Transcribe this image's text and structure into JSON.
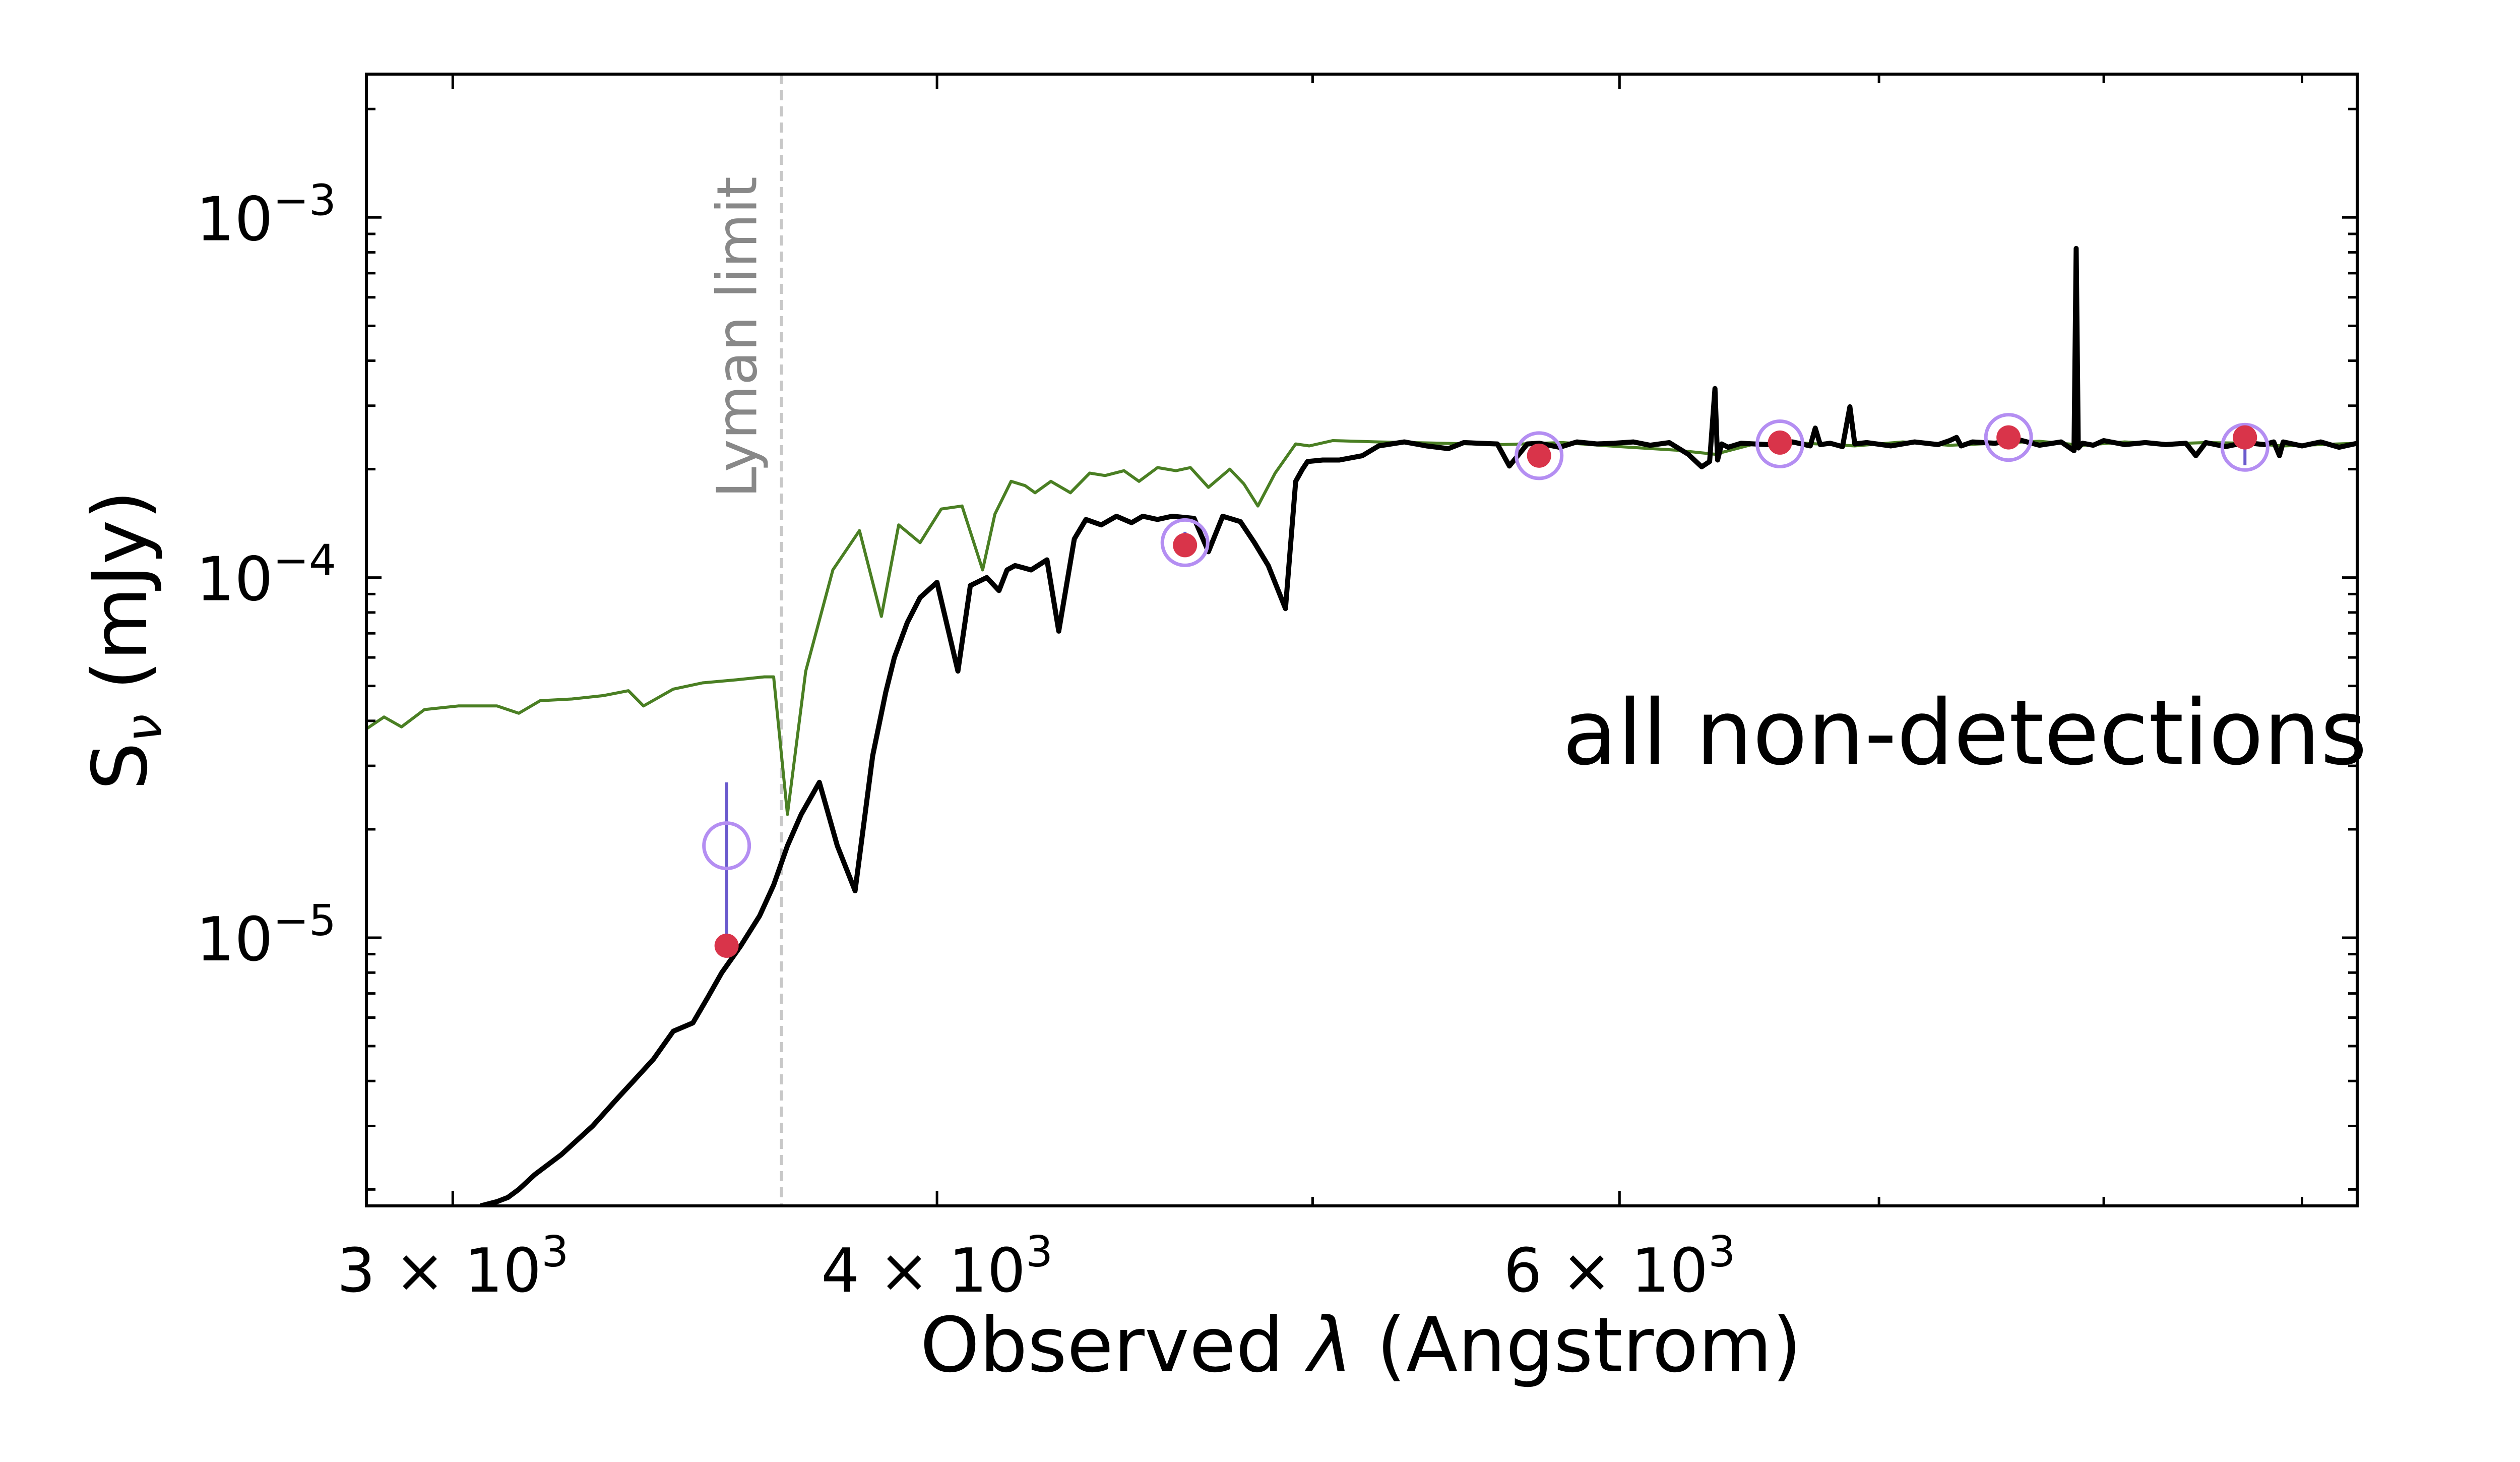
{
  "chart_data": {
    "type": "line",
    "xscale": "log",
    "yscale": "log",
    "xlim": [
      2850,
      9300
    ],
    "ylim": [
      1.8e-06,
      0.0025
    ],
    "xlabel_prefix": "Observed ",
    "xlabel_symbol": "λ",
    "xlabel_suffix": " (Angstrom)",
    "ylabel_main": "S",
    "ylabel_sub": "ν",
    "ylabel_suffix": " (mJy)",
    "x_tick_labels": [
      {
        "value": 3000,
        "mantissa": "3 × 10",
        "exp": "3"
      },
      {
        "value": 4000,
        "mantissa": "4 × 10",
        "exp": "3"
      },
      {
        "value": 6000,
        "mantissa": "6 × 10",
        "exp": "3"
      }
    ],
    "x_minor_ticks": [
      5000,
      7000,
      8000,
      9000
    ],
    "y_tick_labels": [
      {
        "value": 1e-05,
        "base": "10",
        "exp": "−5"
      },
      {
        "value": 0.0001,
        "base": "10",
        "exp": "−4"
      },
      {
        "value": 0.001,
        "base": "10",
        "exp": "−3"
      }
    ],
    "y_minor_ticks": [
      2e-06,
      3e-06,
      4e-06,
      5e-06,
      6e-06,
      7e-06,
      8e-06,
      9e-06,
      2e-05,
      3e-05,
      4e-05,
      5e-05,
      6e-05,
      7e-05,
      8e-05,
      9e-05,
      0.0002,
      0.0003,
      0.0004,
      0.0005,
      0.0006,
      0.0007,
      0.0008,
      0.0009,
      0.002
    ],
    "annotation": "all non-detections",
    "lyman_limit": {
      "x": 3647,
      "label": "Lyman limit",
      "color": "#c8c8c8",
      "label_color": "#888888"
    },
    "series": [
      {
        "name": "intrinsic model (green)",
        "color": "#4a7f23",
        "x": [
          2850,
          2880,
          2910,
          2950,
          3010,
          3080,
          3120,
          3160,
          3220,
          3280,
          3330,
          3360,
          3420,
          3480,
          3550,
          3610,
          3630,
          3660,
          3700,
          3760,
          3820,
          3870,
          3910,
          3960,
          4010,
          4060,
          4110,
          4140,
          4180,
          4215,
          4240,
          4280,
          4330,
          4380,
          4420,
          4470,
          4510,
          4560,
          4610,
          4650,
          4700,
          4760,
          4800,
          4840,
          4890,
          4950,
          4990,
          5060,
          5200,
          5400,
          5600,
          5800,
          6000,
          6200,
          6350,
          6500,
          6700,
          6900,
          7100,
          7300,
          7500,
          7700,
          7900,
          8100,
          8300,
          8500,
          8700,
          8900,
          9100,
          9300
        ],
        "y": [
          3.8e-05,
          4.1e-05,
          3.85e-05,
          4.3e-05,
          4.4e-05,
          4.4e-05,
          4.2e-05,
          4.55e-05,
          4.6e-05,
          4.7e-05,
          4.85e-05,
          4.4e-05,
          4.9e-05,
          5.1e-05,
          5.2e-05,
          5.3e-05,
          5.3e-05,
          2.2e-05,
          5.5e-05,
          0.000105,
          0.000135,
          7.8e-05,
          0.00014,
          0.000125,
          0.000155,
          0.000158,
          0.000105,
          0.00015,
          0.000185,
          0.00018,
          0.000172,
          0.000185,
          0.000172,
          0.000195,
          0.000192,
          0.000198,
          0.000185,
          0.000202,
          0.000198,
          0.000202,
          0.000178,
          0.0002,
          0.000182,
          0.000158,
          0.000195,
          0.000235,
          0.000232,
          0.00024,
          0.000238,
          0.000236,
          0.000234,
          0.000237,
          0.000231,
          0.000226,
          0.00022,
          0.000235,
          0.000236,
          0.000232,
          0.000238,
          0.000233,
          0.000236,
          0.000239,
          0.000233,
          0.000238,
          0.000235,
          0.000237,
          0.000236,
          0.000232,
          0.000234,
          0.000236
        ]
      },
      {
        "name": "attenuated model (black)",
        "color": "#000000",
        "x": [
          3050,
          3080,
          3100,
          3120,
          3150,
          3200,
          3260,
          3310,
          3340,
          3380,
          3420,
          3460,
          3490,
          3520,
          3560,
          3600,
          3630,
          3660,
          3690,
          3730,
          3770,
          3810,
          3850,
          3880,
          3900,
          3930,
          3960,
          4000,
          4050,
          4080,
          4120,
          4150,
          4170,
          4190,
          4230,
          4270,
          4300,
          4340,
          4370,
          4410,
          4450,
          4490,
          4520,
          4560,
          4600,
          4660,
          4700,
          4740,
          4790,
          4830,
          4870,
          4920,
          4950,
          4970,
          4985,
          5030,
          5080,
          5150,
          5200,
          5280,
          5350,
          5420,
          5470,
          5520,
          5580,
          5620,
          5680,
          5720,
          5790,
          5850,
          5920,
          5980,
          6050,
          6110,
          6180,
          6250,
          6300,
          6330,
          6350,
          6360,
          6375,
          6400,
          6450,
          6550,
          6650,
          6720,
          6740,
          6760,
          6800,
          6850,
          6880,
          6900,
          6950,
          7050,
          7150,
          7250,
          7300,
          7330,
          7350,
          7400,
          7500,
          7600,
          7700,
          7800,
          7860,
          7870,
          7880,
          7900,
          7950,
          8000,
          8100,
          8200,
          8300,
          8400,
          8450,
          8500,
          8600,
          8700,
          8800,
          8850,
          8880,
          8900,
          9000,
          9100,
          9200,
          9300
        ],
        "y": [
          1.8e-06,
          1.85e-06,
          1.9e-06,
          2e-06,
          2.2e-06,
          2.5e-06,
          3e-06,
          3.6e-06,
          4e-06,
          4.6e-06,
          5.5e-06,
          5.8e-06,
          6.8e-06,
          8e-06,
          9.5e-06,
          1.15e-05,
          1.4e-05,
          1.8e-05,
          2.2e-05,
          2.7e-05,
          1.8e-05,
          1.35e-05,
          3.2e-05,
          4.8e-05,
          6e-05,
          7.5e-05,
          8.8e-05,
          9.7e-05,
          5.5e-05,
          9.5e-05,
          0.0001,
          9.2e-05,
          0.000105,
          0.000108,
          0.000105,
          0.000112,
          7.1e-05,
          0.000128,
          0.000145,
          0.00014,
          0.000148,
          0.000142,
          0.000148,
          0.000145,
          0.000148,
          0.000146,
          0.000118,
          0.000148,
          0.000143,
          0.000125,
          0.000108,
          8.2e-05,
          0.000185,
          0.0002,
          0.00021,
          0.000212,
          0.000212,
          0.000218,
          0.000232,
          0.000238,
          0.000232,
          0.000228,
          0.000237,
          0.000236,
          0.000235,
          0.000204,
          0.000235,
          0.000236,
          0.00023,
          0.000238,
          0.000235,
          0.000236,
          0.000238,
          0.000233,
          0.000237,
          0.00022,
          0.000203,
          0.00021,
          0.000335,
          0.000212,
          0.000235,
          0.00023,
          0.000236,
          0.000234,
          0.000238,
          0.000232,
          0.00026,
          0.000234,
          0.000236,
          0.000231,
          0.000298,
          0.000235,
          0.000237,
          0.000232,
          0.000238,
          0.000234,
          0.00024,
          0.000245,
          0.000232,
          0.000238,
          0.000236,
          0.000242,
          0.000233,
          0.000238,
          0.000225,
          0.00082,
          0.000229,
          0.000236,
          0.000233,
          0.00024,
          0.000234,
          0.000237,
          0.000234,
          0.000236,
          0.000218,
          0.000237,
          0.000231,
          0.000237,
          0.000234,
          0.000238,
          0.000218,
          0.000238,
          0.000232,
          0.000238,
          0.00023,
          0.000236
        ]
      }
    ],
    "observed_points": {
      "name": "observed fluxes",
      "color": "#b48ef2",
      "errorbar_color": "#6a5acd",
      "points": [
        {
          "x": 3530,
          "y": 1.8e-05,
          "err_low": 9.5e-06,
          "err_high": 2.7e-05
        },
        {
          "x": 4635,
          "y": 0.000125,
          "err_low": 0.000115,
          "err_high": 0.000134
        },
        {
          "x": 5720,
          "y": 0.000218,
          "err_low": 0.000206,
          "err_high": 0.00023
        },
        {
          "x": 6600,
          "y": 0.000235,
          "err_low": 0.000222,
          "err_high": 0.000248
        },
        {
          "x": 7560,
          "y": 0.000245,
          "err_low": 0.000232,
          "err_high": 0.000258
        },
        {
          "x": 8700,
          "y": 0.00023,
          "err_low": 0.000205,
          "err_high": 0.000248
        }
      ]
    },
    "model_photometry": {
      "name": "model photometry",
      "color": "#d9344a",
      "points": [
        {
          "x": 3530,
          "y": 9.5e-06
        },
        {
          "x": 4635,
          "y": 0.000123
        },
        {
          "x": 5720,
          "y": 0.000218
        },
        {
          "x": 6600,
          "y": 0.000237
        },
        {
          "x": 7560,
          "y": 0.000245
        },
        {
          "x": 8700,
          "y": 0.000245
        }
      ]
    }
  }
}
